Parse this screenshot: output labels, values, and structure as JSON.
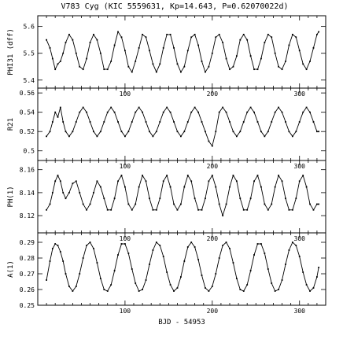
{
  "chart_data": [
    {
      "type": "line",
      "title": "V783 Cyg (KIC 5559631, Kp=14.643, P=0.62070022d)",
      "ylabel": "PHI31 (dff)",
      "xlabel": "",
      "xlim": [
        0,
        330
      ],
      "ylim": [
        5.37,
        5.64
      ],
      "xticks": [
        100,
        200,
        300
      ],
      "yticks": [
        5.4,
        5.5,
        5.6
      ],
      "ytick_labels": [
        "5.4",
        "5.5",
        "5.6"
      ],
      "grid": false,
      "series": [
        {
          "period": 24.2,
          "mean": 5.505,
          "amplitude": 0.068,
          "phase_peak_x": 36,
          "x": [
            10,
            14,
            17,
            20,
            23,
            26,
            29,
            32,
            36,
            40,
            44,
            48,
            52,
            56,
            60,
            64,
            68,
            72,
            76,
            80,
            84,
            88,
            92,
            96,
            100,
            104,
            108,
            112,
            116,
            120,
            124,
            128,
            132,
            136,
            140,
            144,
            148,
            152,
            156,
            160,
            164,
            168,
            172,
            176,
            180,
            184,
            188,
            192,
            196,
            200,
            204,
            208,
            212,
            216,
            220,
            224,
            228,
            232,
            236,
            240,
            244,
            248,
            252,
            256,
            260,
            264,
            268,
            272,
            276,
            280,
            284,
            288,
            292,
            296,
            300,
            304,
            308,
            312,
            316,
            320,
            322
          ],
          "y": [
            5.55,
            5.52,
            5.48,
            5.44,
            5.46,
            5.47,
            5.5,
            5.54,
            5.57,
            5.55,
            5.5,
            5.45,
            5.44,
            5.48,
            5.54,
            5.57,
            5.55,
            5.5,
            5.44,
            5.44,
            5.47,
            5.53,
            5.58,
            5.56,
            5.51,
            5.45,
            5.43,
            5.47,
            5.52,
            5.57,
            5.56,
            5.51,
            5.46,
            5.43,
            5.46,
            5.52,
            5.57,
            5.57,
            5.52,
            5.46,
            5.43,
            5.45,
            5.51,
            5.56,
            5.57,
            5.53,
            5.47,
            5.43,
            5.45,
            5.5,
            5.56,
            5.57,
            5.54,
            5.48,
            5.44,
            5.45,
            5.49,
            5.55,
            5.57,
            5.55,
            5.49,
            5.44,
            5.44,
            5.48,
            5.54,
            5.57,
            5.56,
            5.5,
            5.45,
            5.44,
            5.47,
            5.53,
            5.57,
            5.56,
            5.51,
            5.46,
            5.44,
            5.47,
            5.52,
            5.57,
            5.58
          ]
        }
      ]
    },
    {
      "type": "line",
      "ylabel": "R21",
      "xlabel": "",
      "xlim": [
        0,
        330
      ],
      "ylim": [
        0.49,
        0.565
      ],
      "xticks": [
        100,
        200,
        300
      ],
      "yticks": [
        0.5,
        0.52,
        0.54,
        0.56
      ],
      "ytick_labels": [
        "0.5",
        "0.52",
        "0.54",
        "0.56"
      ],
      "grid": false,
      "series": [
        {
          "x": [
            10,
            14,
            17,
            20,
            23,
            26,
            29,
            32,
            36,
            40,
            44,
            48,
            52,
            56,
            60,
            64,
            68,
            72,
            76,
            80,
            84,
            88,
            92,
            96,
            100,
            104,
            108,
            112,
            116,
            120,
            124,
            128,
            132,
            136,
            140,
            144,
            148,
            152,
            156,
            160,
            164,
            168,
            172,
            176,
            180,
            184,
            188,
            192,
            196,
            200,
            204,
            208,
            212,
            216,
            220,
            224,
            228,
            232,
            236,
            240,
            244,
            248,
            252,
            256,
            260,
            264,
            268,
            272,
            276,
            280,
            284,
            288,
            292,
            296,
            300,
            304,
            308,
            312,
            316,
            320,
            322
          ],
          "y": [
            0.515,
            0.52,
            0.53,
            0.54,
            0.535,
            0.545,
            0.53,
            0.52,
            0.515,
            0.52,
            0.53,
            0.54,
            0.545,
            0.54,
            0.53,
            0.52,
            0.515,
            0.52,
            0.53,
            0.54,
            0.545,
            0.54,
            0.53,
            0.52,
            0.515,
            0.52,
            0.53,
            0.54,
            0.545,
            0.54,
            0.53,
            0.52,
            0.515,
            0.52,
            0.53,
            0.54,
            0.545,
            0.54,
            0.53,
            0.52,
            0.515,
            0.52,
            0.53,
            0.54,
            0.545,
            0.54,
            0.53,
            0.52,
            0.51,
            0.505,
            0.52,
            0.54,
            0.545,
            0.54,
            0.53,
            0.52,
            0.515,
            0.52,
            0.53,
            0.54,
            0.545,
            0.54,
            0.53,
            0.52,
            0.515,
            0.52,
            0.53,
            0.54,
            0.545,
            0.54,
            0.53,
            0.52,
            0.515,
            0.52,
            0.53,
            0.54,
            0.545,
            0.54,
            0.53,
            0.52,
            0.52
          ]
        }
      ]
    },
    {
      "type": "line",
      "ylabel": "PH(1)",
      "xlabel": "",
      "xlim": [
        0,
        330
      ],
      "ylim": [
        8.105,
        8.168
      ],
      "xticks": [
        100,
        200,
        300
      ],
      "yticks": [
        8.12,
        8.14,
        8.16
      ],
      "ytick_labels": [
        "8.12",
        "8.14",
        "8.16"
      ],
      "grid": false,
      "series": [
        {
          "x": [
            10,
            14,
            17,
            20,
            23,
            26,
            29,
            32,
            36,
            40,
            44,
            48,
            52,
            56,
            60,
            64,
            68,
            72,
            76,
            80,
            84,
            88,
            92,
            96,
            100,
            104,
            108,
            112,
            116,
            120,
            124,
            128,
            132,
            136,
            140,
            144,
            148,
            152,
            156,
            160,
            164,
            168,
            172,
            176,
            180,
            184,
            188,
            192,
            196,
            200,
            204,
            208,
            212,
            216,
            220,
            224,
            228,
            232,
            236,
            240,
            244,
            248,
            252,
            256,
            260,
            264,
            268,
            272,
            276,
            280,
            284,
            288,
            292,
            296,
            300,
            304,
            308,
            312,
            316,
            320,
            322
          ],
          "y": [
            8.125,
            8.13,
            8.14,
            8.15,
            8.155,
            8.15,
            8.14,
            8.135,
            8.14,
            8.148,
            8.15,
            8.14,
            8.13,
            8.125,
            8.13,
            8.14,
            8.15,
            8.145,
            8.135,
            8.125,
            8.125,
            8.135,
            8.15,
            8.155,
            8.145,
            8.13,
            8.125,
            8.13,
            8.145,
            8.155,
            8.15,
            8.135,
            8.125,
            8.125,
            8.135,
            8.15,
            8.155,
            8.145,
            8.13,
            8.125,
            8.13,
            8.145,
            8.155,
            8.15,
            8.135,
            8.125,
            8.125,
            8.135,
            8.15,
            8.155,
            8.145,
            8.13,
            8.12,
            8.13,
            8.145,
            8.155,
            8.15,
            8.135,
            8.125,
            8.125,
            8.135,
            8.15,
            8.155,
            8.145,
            8.13,
            8.125,
            8.13,
            8.145,
            8.155,
            8.15,
            8.135,
            8.125,
            8.125,
            8.135,
            8.15,
            8.155,
            8.145,
            8.13,
            8.125,
            8.13,
            8.13
          ]
        }
      ]
    },
    {
      "type": "line",
      "ylabel": "A(1)",
      "xlabel": "BJD - 54953",
      "xlim": [
        0,
        330
      ],
      "ylim": [
        0.25,
        0.296
      ],
      "xticks": [
        100,
        200,
        300
      ],
      "yticks": [
        0.25,
        0.26,
        0.27,
        0.28,
        0.29
      ],
      "ytick_labels": [
        "0.25",
        "0.26",
        "0.27",
        "0.28",
        "0.29"
      ],
      "grid": false,
      "series": [
        {
          "period": 24.2,
          "mean": 0.2745,
          "amplitude": 0.0155,
          "phase_peak_x": 36,
          "x": [
            10,
            14,
            17,
            20,
            23,
            26,
            29,
            32,
            36,
            40,
            44,
            48,
            52,
            56,
            60,
            64,
            68,
            72,
            76,
            80,
            84,
            88,
            92,
            96,
            100,
            104,
            108,
            112,
            116,
            120,
            124,
            128,
            132,
            136,
            140,
            144,
            148,
            152,
            156,
            160,
            164,
            168,
            172,
            176,
            180,
            184,
            188,
            192,
            196,
            200,
            204,
            208,
            212,
            216,
            220,
            224,
            228,
            232,
            236,
            240,
            244,
            248,
            252,
            256,
            260,
            264,
            268,
            272,
            276,
            280,
            284,
            288,
            292,
            296,
            300,
            304,
            308,
            312,
            316,
            320,
            322
          ],
          "y": [
            0.266,
            0.278,
            0.286,
            0.289,
            0.288,
            0.284,
            0.278,
            0.27,
            0.262,
            0.259,
            0.262,
            0.27,
            0.28,
            0.288,
            0.29,
            0.286,
            0.277,
            0.267,
            0.26,
            0.259,
            0.263,
            0.272,
            0.282,
            0.289,
            0.289,
            0.283,
            0.273,
            0.264,
            0.259,
            0.26,
            0.266,
            0.276,
            0.285,
            0.29,
            0.288,
            0.281,
            0.271,
            0.263,
            0.259,
            0.261,
            0.268,
            0.278,
            0.287,
            0.29,
            0.287,
            0.279,
            0.269,
            0.261,
            0.259,
            0.262,
            0.27,
            0.28,
            0.288,
            0.29,
            0.286,
            0.277,
            0.267,
            0.26,
            0.259,
            0.263,
            0.272,
            0.282,
            0.289,
            0.289,
            0.283,
            0.273,
            0.264,
            0.259,
            0.26,
            0.266,
            0.276,
            0.285,
            0.29,
            0.288,
            0.281,
            0.271,
            0.263,
            0.259,
            0.261,
            0.268,
            0.274
          ]
        }
      ]
    }
  ]
}
